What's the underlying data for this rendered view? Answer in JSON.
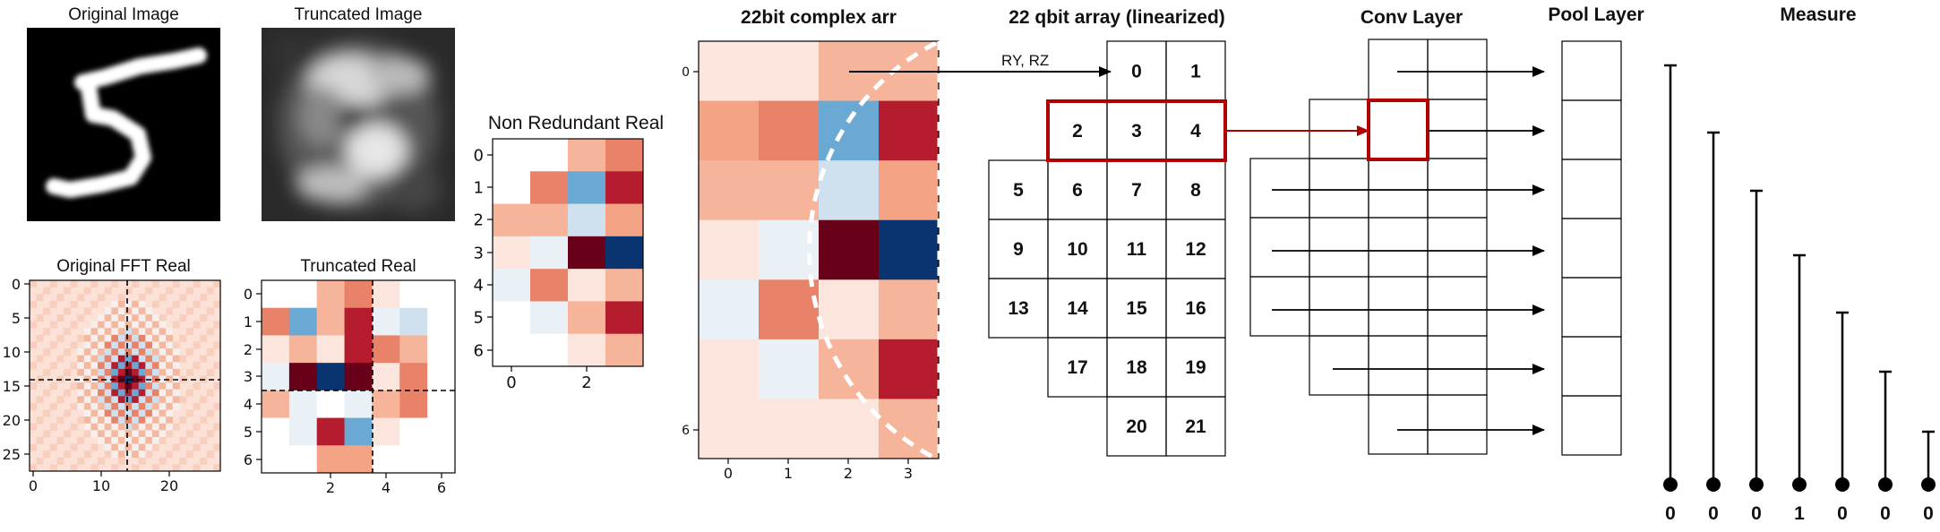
{
  "titles": {
    "original_image": "Original Image",
    "truncated_image": "Truncated Image",
    "original_fft_real": "Original FFT Real",
    "truncated_real": "Truncated Real",
    "non_redundant_real": "Non Redundant Real",
    "complex_arr": "22bit complex arr",
    "qbit_array": "22 qbit array (linearized)",
    "conv_layer": "Conv Layer",
    "pool_layer": "Pool Layer",
    "measure": "Measure"
  },
  "encoding_label": "RY, RZ",
  "ticks": {
    "fft_y": [
      "0",
      "5",
      "10",
      "15",
      "20",
      "25"
    ],
    "fft_x": [
      "0",
      "10",
      "20"
    ],
    "trunc_y": [
      "0",
      "1",
      "2",
      "3",
      "4",
      "5",
      "6"
    ],
    "trunc_x": [
      "2",
      "4",
      "6"
    ],
    "nr_y": [
      "0",
      "1",
      "2",
      "3",
      "4",
      "5",
      "6"
    ],
    "nr_x": [
      "0",
      "2"
    ],
    "complex_y": [
      "0",
      "6"
    ],
    "complex_x": [
      "0",
      "1",
      "2",
      "3"
    ]
  },
  "heatmap_colors": {
    "n": "#ffffff",
    "a": "#fbe5dc",
    "b": "#f6b49b",
    "c": "#f4a384",
    "d": "#e8836a",
    "r": "#b51d2e",
    "m": "#680019",
    "w": "#e9f1f7",
    "l": "#cfe1ee",
    "u": "#6aa9d4",
    "k": "#0a3470"
  },
  "truncated_real_grid": [
    "nnbdann",
    "dubrwln",
    "abardbn",
    "wmkmadn",
    "bwnwbdn",
    "nwrua nn",
    "nnccnnn"
  ],
  "non_redundant_grid": [
    "nnbd",
    "ndur",
    "bblc",
    "awmk",
    "wdab",
    "nwbr",
    "nnab"
  ],
  "complex_grid": [
    "aabb",
    "cdur",
    "bblc",
    "awmk",
    "wdab",
    "awbr",
    "aaab"
  ],
  "qbit_cells": [
    "0",
    "1",
    "2",
    "3",
    "4",
    "5",
    "6",
    "7",
    "8",
    "9",
    "10",
    "11",
    "12",
    "13",
    "14",
    "15",
    "16",
    "17",
    "18",
    "19",
    "20",
    "21"
  ],
  "measurements": [
    "0",
    "0",
    "0",
    "1",
    "0",
    "0",
    "0"
  ]
}
